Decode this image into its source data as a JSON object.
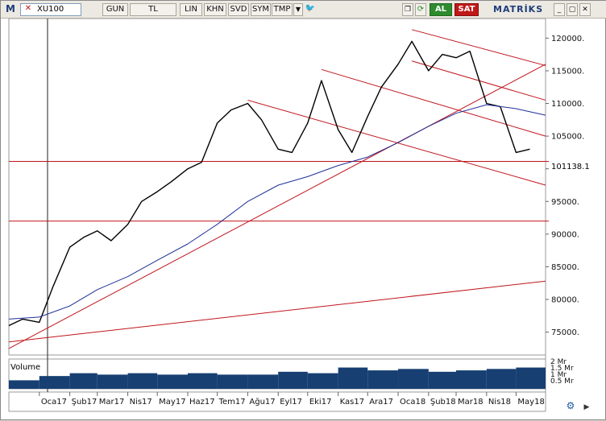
{
  "toolbar": {
    "m_icon": "M",
    "symbol": "XU100",
    "period": "GUN",
    "currency": "TL",
    "lin": "LIN",
    "khn": "KHN",
    "svd": "SVD",
    "sym": "SYM",
    "tmp": "TMP",
    "buy": "AL",
    "sell": "SAT",
    "brand": "MATRİKS",
    "icons": [
      "chevron-down-icon",
      "twitter-icon",
      "copy-icon",
      "refresh-icon",
      "minimize-icon",
      "restore-icon",
      "close-icon"
    ]
  },
  "colors": {
    "price": "#000000",
    "moving_average": "#1f2f9a",
    "trend_lines": "#c0141c",
    "volume": "#173f72",
    "buy": "#2e8b2e",
    "sell": "#c01818"
  },
  "last_price_label": "101138.1",
  "volume_label": "Volume",
  "chart_data": {
    "type": "line",
    "title": "",
    "xlabel": "",
    "ylabel": "",
    "x_tick_labels": [
      "Oca17",
      "Şub17",
      "Mar17",
      "Nis17",
      "May17",
      "Haz17",
      "Tem17",
      "Ağu17",
      "Eyl17",
      "Eki17",
      "Kas17",
      "Ara17",
      "Oca18",
      "Şub18",
      "Mar18",
      "Nis18",
      "May18"
    ],
    "y_tick_labels": [
      "120000.",
      "115000.",
      "110000.",
      "105000.",
      "100000.",
      "95000.",
      "90000.",
      "85000.",
      "80000.",
      "75000."
    ],
    "ylim": [
      71500,
      123000
    ],
    "grid": false,
    "series": [
      {
        "x": [
          "2016-12-01",
          "2016-12-15",
          "2017-01-01",
          "2017-01-15",
          "2017-02-01",
          "2017-02-15",
          "2017-03-01",
          "2017-03-15",
          "2017-04-01",
          "2017-04-15",
          "2017-05-01",
          "2017-05-15",
          "2017-06-01",
          "2017-06-15",
          "2017-07-01",
          "2017-07-15",
          "2017-08-01",
          "2017-08-15",
          "2017-09-01",
          "2017-09-15",
          "2017-10-01",
          "2017-10-15",
          "2017-11-01",
          "2017-11-15",
          "2017-12-01",
          "2017-12-15",
          "2018-01-01",
          "2018-01-15",
          "2018-02-01",
          "2018-02-15",
          "2018-03-01",
          "2018-03-15",
          "2018-04-01",
          "2018-04-15",
          "2018-05-01",
          "2018-05-15"
        ],
        "values": [
          76000,
          77000,
          76500,
          82000,
          88000,
          89500,
          90500,
          89000,
          91500,
          95000,
          96500,
          98000,
          100000,
          101000,
          107000,
          109000,
          110000,
          107500,
          103000,
          102500,
          107000,
          113500,
          106000,
          102500,
          108000,
          112500,
          116000,
          119500,
          115000,
          117500,
          117000,
          118000,
          110000,
          109500,
          102500,
          103000
        ]
      },
      {
        "x": [
          "2016-12-01",
          "2017-01-01",
          "2017-02-01",
          "2017-03-01",
          "2017-04-01",
          "2017-05-01",
          "2017-06-01",
          "2017-07-01",
          "2017-08-01",
          "2017-09-01",
          "2017-10-01",
          "2017-11-01",
          "2017-12-01",
          "2018-01-01",
          "2018-02-01",
          "2018-03-01",
          "2018-04-01",
          "2018-05-01",
          "2018-05-31"
        ],
        "values": [
          77000,
          77300,
          79000,
          81500,
          83500,
          86000,
          88500,
          91500,
          95000,
          97500,
          98800,
          100500,
          101800,
          104000,
          106500,
          108500,
          109800,
          109200,
          108200
        ]
      },
      {
        "type": "volume",
        "x": [
          "2016-12-01",
          "2017-01-01",
          "2017-02-01",
          "2017-03-01",
          "2017-04-01",
          "2017-05-01",
          "2017-06-01",
          "2017-07-01",
          "2017-08-01",
          "2017-09-01",
          "2017-10-01",
          "2017-11-01",
          "2017-12-01",
          "2018-01-01",
          "2018-02-01",
          "2018-03-01",
          "2018-04-01",
          "2018-05-01"
        ],
        "values": [
          0.6,
          0.9,
          1.1,
          1.0,
          1.1,
          1.0,
          1.1,
          1.0,
          1.0,
          1.2,
          1.1,
          1.5,
          1.3,
          1.4,
          1.2,
          1.3,
          1.4,
          1.5
        ]
      }
    ],
    "volume_axis_labels": [
      "2 Mr",
      "1.5 Mr",
      "1 Mr",
      "0.5 Mr"
    ],
    "horizontal_lines": [
      101138.1,
      92000
    ],
    "trend_lines": [
      {
        "from": [
          "2016-12-01",
          72500
        ],
        "to": [
          "2018-05-31",
          116000
        ]
      },
      {
        "from": [
          "2016-12-01",
          73500
        ],
        "to": [
          "2018-05-31",
          82800
        ]
      },
      {
        "from": [
          "2017-08-01",
          110500
        ],
        "to": [
          "2018-05-31",
          97500
        ]
      },
      {
        "from": [
          "2017-10-15",
          115200
        ],
        "to": [
          "2018-05-31",
          105000
        ]
      },
      {
        "from": [
          "2018-01-15",
          121300
        ],
        "to": [
          "2018-05-31",
          115800
        ]
      },
      {
        "from": [
          "2018-01-15",
          116500
        ],
        "to": [
          "2018-05-31",
          110500
        ]
      }
    ]
  }
}
